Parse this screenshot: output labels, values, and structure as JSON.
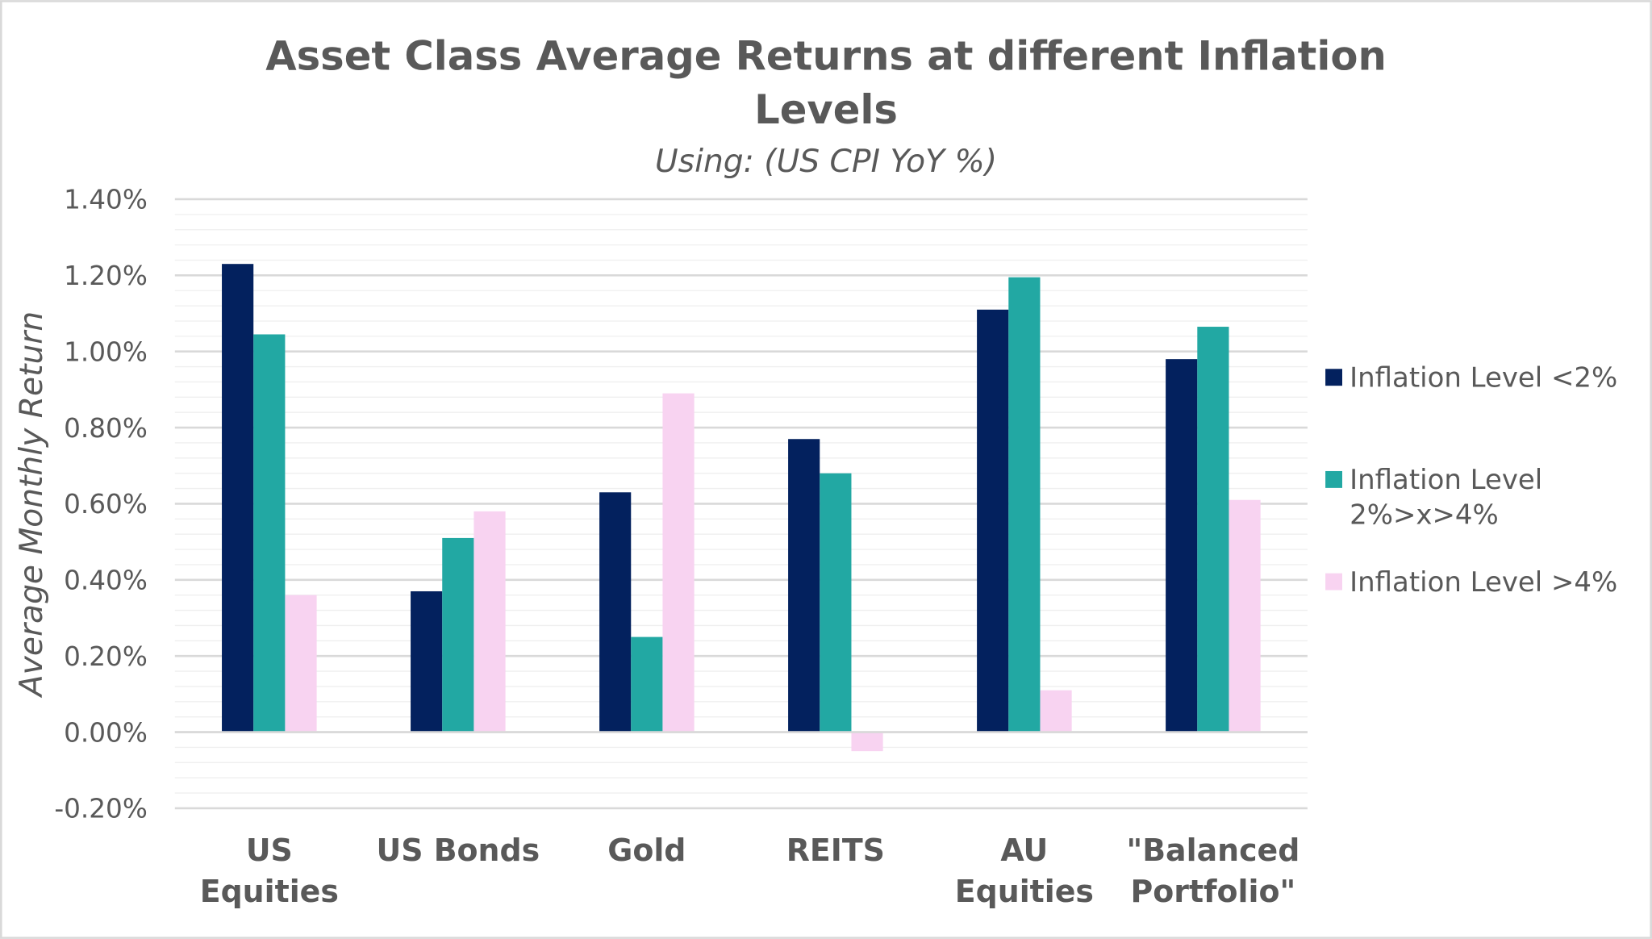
{
  "chart_data": {
    "type": "bar",
    "title": "Asset Class Average Returns at different Inflation Levels",
    "title_lines": [
      "Asset Class Average Returns at different Inflation",
      "Levels"
    ],
    "subtitle": "Using: (US CPI YoY %)",
    "xlabel": "",
    "ylabel": "Average Monthly Return",
    "ylim": [
      -0.2,
      1.4
    ],
    "yticks": [
      "1.40%",
      "1.20%",
      "1.00%",
      "0.80%",
      "0.60%",
      "0.40%",
      "0.20%",
      "0.00%",
      "-0.20%"
    ],
    "ytick_values": [
      1.4,
      1.2,
      1.0,
      0.8,
      0.6,
      0.4,
      0.2,
      0.0,
      -0.2
    ],
    "grid": true,
    "legend_position": "right",
    "categories": [
      [
        "US",
        "Equities"
      ],
      [
        "US Bonds"
      ],
      [
        "Gold"
      ],
      [
        "REITS"
      ],
      [
        "AU",
        "Equities"
      ],
      [
        "\"Balanced",
        "Portfolio\""
      ]
    ],
    "series": [
      {
        "name": "Inflation Level <2%",
        "legend_lines": [
          "Inflation Level <2%"
        ],
        "color": "#03215E",
        "values": [
          1.23,
          0.37,
          0.63,
          0.77,
          1.11,
          0.98
        ]
      },
      {
        "name": "Inflation Level 2%>x>4%",
        "legend_lines": [
          "Inflation Level",
          "2%>x>4%"
        ],
        "color": "#22A8A3",
        "values": [
          1.045,
          0.51,
          0.25,
          0.68,
          1.195,
          1.065
        ]
      },
      {
        "name": "Inflation Level >4%",
        "legend_lines": [
          "Inflation Level >4%"
        ],
        "color": "#F8D3F1",
        "values": [
          0.36,
          0.58,
          0.89,
          -0.05,
          0.11,
          0.61
        ]
      }
    ]
  }
}
